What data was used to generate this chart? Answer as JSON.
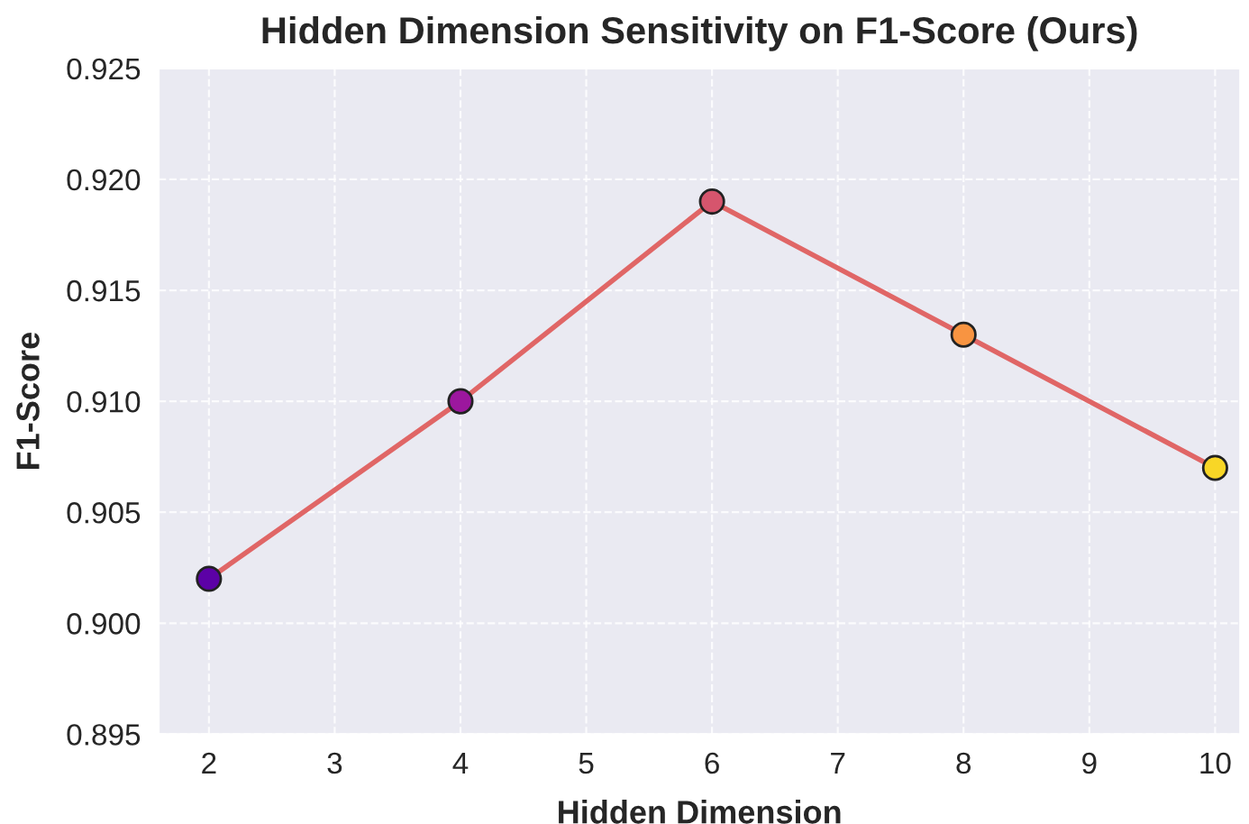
{
  "chart_data": {
    "type": "line",
    "title": "Hidden Dimension Sensitivity on F1-Score (Ours)",
    "xlabel": "Hidden Dimension",
    "ylabel": "F1-Score",
    "x": [
      2,
      4,
      6,
      8,
      10
    ],
    "series": [
      {
        "color": "#e06666",
        "colors": [
          "#5c01a6",
          "#9c179e",
          "#d6556d",
          "#f89441",
          "#f8d626"
        ],
        "values": [
          0.902,
          0.91,
          0.919,
          0.913,
          0.907
        ]
      }
    ],
    "xlim": [
      1.6,
      10.2
    ],
    "xticks": [
      2,
      3,
      4,
      5,
      6,
      7,
      8,
      9,
      10
    ],
    "ylim": [
      0.895,
      0.925
    ],
    "yticks": [
      {
        "value": 0.895,
        "label": "0.895"
      },
      {
        "value": 0.9,
        "label": "0.900"
      },
      {
        "value": 0.905,
        "label": "0.905"
      },
      {
        "value": 0.91,
        "label": "0.910"
      },
      {
        "value": 0.915,
        "label": "0.915"
      },
      {
        "value": 0.92,
        "label": "0.920"
      },
      {
        "value": 0.925,
        "label": "0.925"
      }
    ],
    "grid": true,
    "marker": "circle",
    "line_style": "solid"
  }
}
